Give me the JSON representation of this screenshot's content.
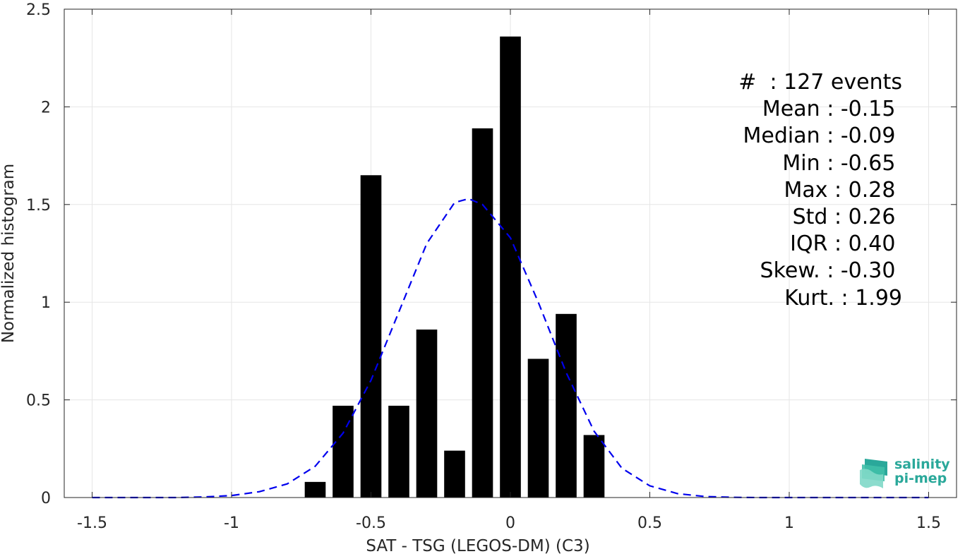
{
  "chart_data": {
    "type": "bar",
    "xlabel": "SAT - TSG (LEGOS-DM) (C3)",
    "ylabel": "Normalized histogram",
    "xlim": [
      -1.6,
      1.6
    ],
    "ylim": [
      0,
      2.5
    ],
    "xticks": [
      -1.5,
      -1,
      -0.5,
      0,
      0.5,
      1,
      1.5
    ],
    "xtick_labels": [
      "-1.5",
      "-1",
      "-0.5",
      "0",
      "0.5",
      "1",
      "1.5"
    ],
    "yticks": [
      0,
      0.5,
      1,
      1.5,
      2,
      2.5
    ],
    "ytick_labels": [
      "0",
      "0.5",
      "1",
      "1.5",
      "2",
      "2.5"
    ],
    "grid": true,
    "bar_width": 0.075,
    "bars": {
      "x": [
        -0.7,
        -0.6,
        -0.5,
        -0.4,
        -0.3,
        -0.2,
        -0.1,
        0.0,
        0.1,
        0.2,
        0.3
      ],
      "values": [
        0.08,
        0.47,
        1.65,
        0.47,
        0.86,
        0.24,
        1.89,
        2.36,
        0.71,
        0.94,
        0.32
      ],
      "color": "#000000"
    },
    "fit_curve": {
      "style": "dashed",
      "color": "#0000ee",
      "x": [
        -1.5,
        -1.4,
        -1.3,
        -1.2,
        -1.1,
        -1.0,
        -0.9,
        -0.8,
        -0.7,
        -0.6,
        -0.5,
        -0.4,
        -0.3,
        -0.2,
        -0.15,
        -0.1,
        0.0,
        0.1,
        0.2,
        0.3,
        0.4,
        0.5,
        0.6,
        0.7,
        0.8,
        0.9,
        1.0,
        1.1,
        1.2,
        1.3,
        1.4,
        1.5
      ],
      "values": [
        0.0,
        0.0,
        0.0,
        0.0,
        0.003,
        0.01,
        0.03,
        0.07,
        0.16,
        0.33,
        0.6,
        0.95,
        1.3,
        1.51,
        1.53,
        1.5,
        1.33,
        1.0,
        0.64,
        0.34,
        0.15,
        0.06,
        0.02,
        0.005,
        0.001,
        0.0,
        0.0,
        0.0,
        0.0,
        0.0,
        0.0,
        0.0
      ]
    }
  },
  "stats": [
    "#  : 127 events",
    "Mean : -0.15 ",
    "Median : -0.09 ",
    "Min : -0.65 ",
    "Max : 0.28 ",
    "Std : 0.26 ",
    "IQR : 0.40 ",
    "Skew. : -0.30 ",
    "Kurt. : 1.99"
  ],
  "logo": {
    "line1": "salinity",
    "line2": "pi-mep",
    "color": "#2aa89a"
  }
}
